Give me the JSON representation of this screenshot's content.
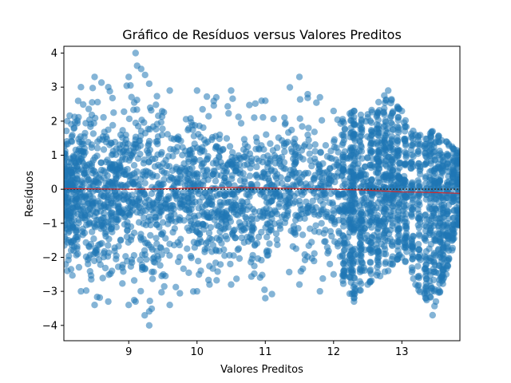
{
  "chart_data": {
    "type": "scatter",
    "title": "Gráfico de Resíduos versus Valores Preditos",
    "xlabel": "Valores Preditos",
    "ylabel": "Resíduos",
    "xlim": [
      8.05,
      13.85
    ],
    "ylim": [
      -4.45,
      4.2
    ],
    "x_ticks": [
      9,
      10,
      11,
      12,
      13
    ],
    "x_tick_labels": [
      "9",
      "10",
      "11",
      "12",
      "13"
    ],
    "y_ticks": [
      -4,
      -3,
      -2,
      -1,
      0,
      1,
      2,
      3,
      4
    ],
    "y_tick_labels": [
      "−4",
      "−3",
      "−2",
      "−1",
      "0",
      "1",
      "2",
      "3",
      "4"
    ],
    "grid": false,
    "legend": "none",
    "colors": {
      "points": "#1f77b4",
      "smoother": "#d62728",
      "zero_line": "#333333"
    },
    "scatter_envelope": [
      {
        "x": 8.1,
        "y_min": -2.4,
        "y_max": 2.0
      },
      {
        "x": 8.3,
        "y_min": -3.0,
        "y_max": 3.0
      },
      {
        "x": 8.5,
        "y_min": -3.4,
        "y_max": 3.3
      },
      {
        "x": 8.7,
        "y_min": -3.3,
        "y_max": 3.0
      },
      {
        "x": 9.0,
        "y_min": -3.4,
        "y_max": 3.3
      },
      {
        "x": 9.1,
        "y_min": -3.3,
        "y_max": 4.0
      },
      {
        "x": 9.3,
        "y_min": -4.0,
        "y_max": 3.1
      },
      {
        "x": 9.6,
        "y_min": -3.4,
        "y_max": 2.9
      },
      {
        "x": 10.0,
        "y_min": -3.0,
        "y_max": 2.9
      },
      {
        "x": 10.5,
        "y_min": -2.8,
        "y_max": 2.9
      },
      {
        "x": 11.0,
        "y_min": -3.2,
        "y_max": 2.6
      },
      {
        "x": 11.5,
        "y_min": -2.8,
        "y_max": 3.3
      },
      {
        "x": 11.8,
        "y_min": -3.0,
        "y_max": 2.7
      },
      {
        "x": 12.0,
        "y_min": -2.5,
        "y_max": 2.3
      },
      {
        "x": 12.3,
        "y_min": -3.3,
        "y_max": 2.3
      },
      {
        "x": 12.5,
        "y_min": -2.8,
        "y_max": 2.2
      },
      {
        "x": 12.8,
        "y_min": -2.4,
        "y_max": 2.9
      },
      {
        "x": 13.0,
        "y_min": -2.0,
        "y_max": 2.3
      },
      {
        "x": 13.2,
        "y_min": -2.8,
        "y_max": 1.6
      },
      {
        "x": 13.45,
        "y_min": -3.7,
        "y_max": 1.7
      },
      {
        "x": 13.65,
        "y_min": -2.5,
        "y_max": 1.4
      },
      {
        "x": 13.85,
        "y_min": -1.0,
        "y_max": 1.1
      }
    ],
    "smoother": [
      {
        "x": 8.05,
        "y": 0.02
      },
      {
        "x": 9.0,
        "y": 0.0
      },
      {
        "x": 9.5,
        "y": 0.01
      },
      {
        "x": 10.0,
        "y": 0.04
      },
      {
        "x": 10.5,
        "y": 0.05
      },
      {
        "x": 11.0,
        "y": 0.04
      },
      {
        "x": 11.5,
        "y": 0.02
      },
      {
        "x": 12.0,
        "y": 0.0
      },
      {
        "x": 12.5,
        "y": -0.03
      },
      {
        "x": 13.0,
        "y": -0.08
      },
      {
        "x": 13.5,
        "y": -0.1
      },
      {
        "x": 13.85,
        "y": -0.12
      }
    ],
    "reference_line_y": 0
  }
}
